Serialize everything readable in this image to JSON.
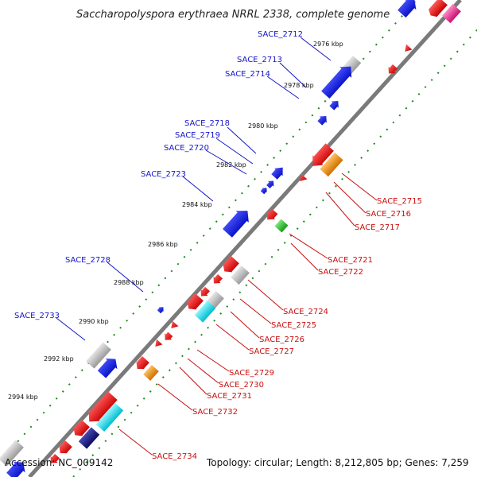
{
  "title": "Saccharopolyspora erythraea NRRL 2338, complete genome",
  "accession": "Accession: NC_009142",
  "summary": "Topology: circular; Length: 8,212,805 bp; Genes: 7,259",
  "ticks": [
    "2976 kbp",
    "2978 kbp",
    "2980 kbp",
    "2982 kbp",
    "2984 kbp",
    "2986 kbp",
    "2988 kbp",
    "2990 kbp",
    "2992 kbp",
    "2994 kbp"
  ],
  "blue_labels": [
    "SACE_2712",
    "SACE_2713",
    "SACE_2714",
    "SACE_2718",
    "SACE_2719",
    "SACE_2720",
    "SACE_2723",
    "SACE_2728",
    "SACE_2733"
  ],
  "red_labels": [
    "SACE_2715",
    "SACE_2716",
    "SACE_2717",
    "SACE_2721",
    "SACE_2722",
    "SACE_2724",
    "SACE_2725",
    "SACE_2726",
    "SACE_2727",
    "SACE_2729",
    "SACE_2730",
    "SACE_2731",
    "SACE_2732",
    "SACE_2734"
  ],
  "colors": {
    "backbone": "#7a7a7a",
    "dots": "#1e8a1e",
    "blue_gene": "#0a12e6",
    "red_gene": "#ee1010",
    "gray_gene": "#b8b8b8",
    "cyan_gene": "#19e0f0",
    "orange_gene": "#f39a1e",
    "green_gene": "#33cc33",
    "navy_gene": "#1a1a8a",
    "magenta_gene": "#ee3aa0",
    "blue_label": "#1515c8",
    "red_label": "#c81010"
  }
}
